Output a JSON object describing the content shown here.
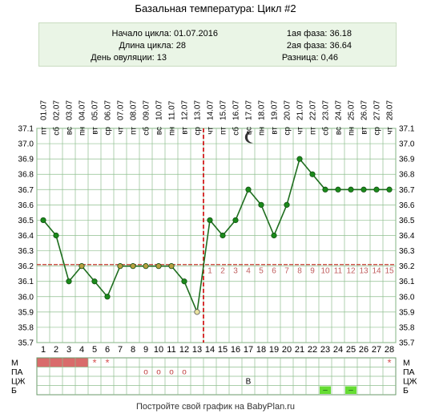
{
  "title": "Базальная температура: Цикл #2",
  "info": {
    "cycle_start": "Начало цикла: 01.07.2016",
    "cycle_length": "Длина цикла: 28",
    "ovulation_day": "День овуляции: 13",
    "phase1": "1ая фаза: 36.18",
    "phase2": "2ая фаза: 36.64",
    "difference": "Разница: 0,46"
  },
  "footer": "Постройте свой график на BabyPlan.ru",
  "colors": {
    "line": "#1f6e1f",
    "point": "#1a8a1a",
    "coverline": "#c0392b",
    "ovulation": "#cc0000",
    "grid": "#8fbf8f",
    "period": "#d96b6b",
    "b_marker": "#66dd33"
  },
  "chart_data": {
    "type": "line",
    "title": "Базальная температура: Цикл #2",
    "days": [
      1,
      2,
      3,
      4,
      5,
      6,
      7,
      8,
      9,
      10,
      11,
      12,
      13,
      14,
      15,
      16,
      17,
      18,
      19,
      20,
      21,
      22,
      23,
      24,
      25,
      26,
      27,
      28
    ],
    "dates": [
      "01.07",
      "02.07",
      "03.07",
      "04.07",
      "05.07",
      "06.07",
      "07.07",
      "08.07",
      "09.07",
      "10.07",
      "11.07",
      "12.07",
      "13.07",
      "14.07",
      "15.07",
      "16.07",
      "17.07",
      "18.07",
      "19.07",
      "20.07",
      "21.07",
      "22.07",
      "23.07",
      "24.07",
      "25.07",
      "26.07",
      "27.07",
      "28.07"
    ],
    "weekdays": [
      "пт",
      "сб",
      "вс",
      "пн",
      "вт",
      "ср",
      "чт",
      "пт",
      "сб",
      "вс",
      "пн",
      "вт",
      "ср",
      "чт",
      "пт",
      "сб",
      "вс",
      "пн",
      "вт",
      "ср",
      "чт",
      "пт",
      "сб",
      "вс",
      "пн",
      "вт",
      "ср",
      "чт"
    ],
    "values": [
      36.5,
      36.4,
      36.1,
      36.2,
      36.1,
      36.0,
      36.2,
      36.2,
      36.2,
      36.2,
      36.2,
      36.1,
      35.9,
      36.5,
      36.4,
      36.5,
      36.7,
      36.6,
      36.4,
      36.6,
      36.9,
      36.8,
      36.7,
      36.7,
      36.7,
      36.7,
      36.7,
      36.7
    ],
    "y_ticks": [
      "37.1",
      "37.0",
      "36.9",
      "36.8",
      "36.7",
      "36.6",
      "36.5",
      "36.4",
      "36.3",
      "36.2",
      "36.1",
      "36.0",
      "35.9",
      "35.8",
      "35.7"
    ],
    "ylim": [
      35.7,
      37.1
    ],
    "coverline": 36.21,
    "ovulation_day": 13,
    "phase2_numbers": [
      "1",
      "2",
      "3",
      "4",
      "5",
      "6",
      "7",
      "8",
      "9",
      "10",
      "11",
      "12",
      "13",
      "14",
      "15"
    ],
    "moon_day": 17,
    "grid": true
  },
  "bottom_rows": {
    "labels": [
      "М",
      "ПА",
      "ЦЖ",
      "Б"
    ],
    "period_days": [
      1,
      2,
      3,
      4
    ],
    "period_star_days": [
      5,
      6,
      28
    ],
    "star": "*",
    "pa_days": [
      9,
      10,
      11,
      12
    ],
    "pa_mark": "o",
    "cj_day": 17,
    "cj_mark": "В",
    "b_days": [
      23,
      25
    ],
    "b_mark": "–"
  }
}
